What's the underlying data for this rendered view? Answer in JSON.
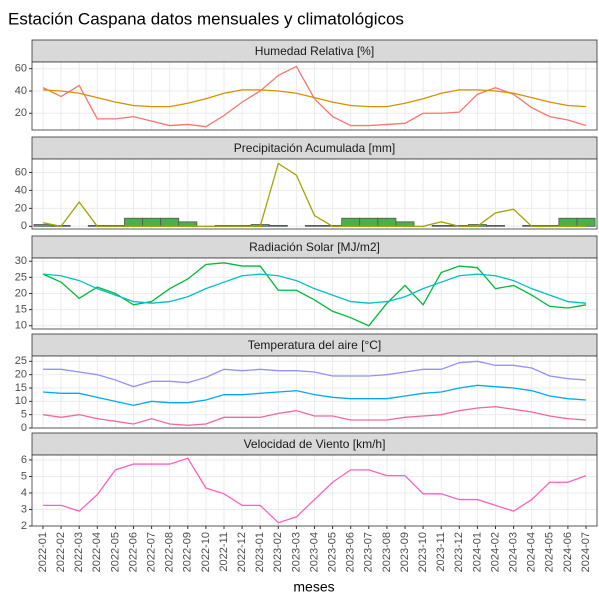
{
  "title": "Estación Caspana datos mensuales y climatológicos",
  "xlabel": "meses",
  "categories": [
    "2022-01",
    "2022-02",
    "2022-03",
    "2022-04",
    "2022-05",
    "2022-06",
    "2022-07",
    "2022-08",
    "2022-09",
    "2022-10",
    "2022-11",
    "2022-12",
    "2023-01",
    "2023-02",
    "2023-03",
    "2023-04",
    "2023-05",
    "2023-06",
    "2023-07",
    "2023-08",
    "2023-09",
    "2023-10",
    "2023-11",
    "2023-12",
    "2024-01",
    "2024-02",
    "2024-03",
    "2024-04",
    "2024-05",
    "2024-06",
    "2024-07"
  ],
  "chart_data": [
    {
      "type": "line",
      "title": "Humedad Relativa [%]",
      "ylim": [
        5,
        66
      ],
      "yticks": [
        20,
        40,
        60
      ],
      "grid": true,
      "series": [
        {
          "type": "line",
          "color": "#f8766d",
          "values": [
            43,
            35,
            45,
            15,
            15,
            17,
            13,
            9,
            10,
            8,
            18,
            30,
            40,
            54,
            62,
            33,
            17,
            9,
            9,
            10,
            11,
            20,
            20,
            21,
            37,
            43,
            37,
            25,
            17,
            14,
            9
          ]
        },
        {
          "type": "line",
          "color": "#d89000",
          "values": [
            41,
            40,
            38,
            34,
            30,
            27,
            26,
            26,
            29,
            33,
            38,
            41,
            41,
            40,
            38,
            34,
            30,
            27,
            26,
            26,
            29,
            33,
            38,
            41,
            41,
            40,
            38,
            34,
            30,
            27,
            26
          ]
        }
      ]
    },
    {
      "type": "line",
      "title": "Precipitación Acumulada [mm]",
      "ylim": [
        -3,
        75
      ],
      "yticks": [
        0,
        20,
        40,
        60
      ],
      "grid": true,
      "series": [
        {
          "type": "bar",
          "color": "#4daf4a",
          "values": [
            2,
            1,
            0,
            1,
            1,
            9,
            9,
            9,
            5,
            0,
            1,
            1,
            2,
            1,
            0,
            1,
            1,
            9,
            9,
            9,
            5,
            0,
            1,
            1,
            2,
            1,
            0,
            1,
            1,
            9,
            9
          ]
        },
        {
          "type": "line",
          "color": "#a3a500",
          "values": [
            4,
            0,
            27,
            0,
            0,
            0,
            0,
            0,
            0,
            0,
            0,
            0,
            0,
            70,
            57,
            12,
            0,
            0,
            0,
            0,
            0,
            0,
            5,
            0,
            0,
            15,
            19,
            0,
            0,
            0,
            0
          ]
        }
      ]
    },
    {
      "type": "line",
      "title": "Radiación Solar [MJ/m2]",
      "ylim": [
        9,
        31
      ],
      "yticks": [
        10,
        15,
        20,
        25,
        30
      ],
      "grid": true,
      "series": [
        {
          "type": "line",
          "color": "#00ba38",
          "values": [
            26,
            23.5,
            18.5,
            22,
            20,
            16.5,
            17.5,
            21.5,
            24.5,
            29,
            29.5,
            28.5,
            28.5,
            21,
            21,
            18,
            14.5,
            12.5,
            10,
            17,
            22.5,
            16.5,
            26.5,
            28.5,
            28,
            21.5,
            22.5,
            19.5,
            16,
            15.5,
            16.5
          ]
        },
        {
          "type": "line",
          "color": "#00bfc4",
          "values": [
            26,
            25.5,
            24,
            21.5,
            19.5,
            17.5,
            17,
            17.5,
            19,
            21.5,
            23.5,
            25.5,
            26,
            25.5,
            24,
            21.5,
            19.5,
            17.5,
            17,
            17.5,
            19,
            21.5,
            23.5,
            25.5,
            26,
            25.5,
            24,
            21.5,
            19.5,
            17.5,
            17
          ]
        }
      ]
    },
    {
      "type": "line",
      "title": "Temperatura del aire [°C]",
      "ylim": [
        0,
        27
      ],
      "yticks": [
        0,
        5,
        10,
        15,
        20,
        25
      ],
      "grid": true,
      "series": [
        {
          "type": "line",
          "color": "#9590ff",
          "values": [
            22,
            22,
            21,
            20,
            18,
            15.5,
            17.5,
            17.5,
            17,
            19,
            22,
            21.5,
            22,
            21.5,
            21.5,
            21,
            19.5,
            19.5,
            19.5,
            20,
            21,
            22,
            22,
            24.5,
            25,
            23.5,
            23.5,
            22.5,
            19.5,
            18.5,
            18
          ]
        },
        {
          "type": "line",
          "color": "#00a9ff",
          "values": [
            13.5,
            13,
            13,
            11.5,
            10,
            8.5,
            10,
            9.5,
            9.5,
            10.5,
            12.5,
            12.5,
            13,
            13.5,
            14,
            12.5,
            11.5,
            11,
            11,
            11,
            12,
            13,
            13.5,
            15,
            16,
            15.5,
            15,
            14,
            12,
            11,
            10.5
          ]
        },
        {
          "type": "line",
          "color": "#f06aa0",
          "values": [
            5,
            4,
            5,
            3.5,
            2.5,
            1.5,
            3.5,
            1.5,
            1,
            1.5,
            4,
            4,
            4,
            5.5,
            6.5,
            4.5,
            4.5,
            3,
            3,
            3,
            4,
            4.5,
            5,
            6.5,
            7.5,
            8,
            7,
            6,
            4.5,
            3.5,
            3
          ]
        }
      ]
    },
    {
      "type": "line",
      "title": "Velocidad de Viento [km/h]",
      "ylim": [
        2,
        6.3
      ],
      "yticks": [
        2,
        3,
        4,
        5,
        6
      ],
      "grid": true,
      "series": [
        {
          "type": "line",
          "color": "#ff61c3",
          "values": [
            3.25,
            3.25,
            2.9,
            3.9,
            5.4,
            5.75,
            5.75,
            5.75,
            6.1,
            4.3,
            3.95,
            3.25,
            3.25,
            2.2,
            2.55,
            3.6,
            4.65,
            5.4,
            5.4,
            5.05,
            5.05,
            3.95,
            3.95,
            3.6,
            3.6,
            3.25,
            2.9,
            3.6,
            4.65,
            4.65,
            5.05
          ]
        }
      ]
    }
  ]
}
